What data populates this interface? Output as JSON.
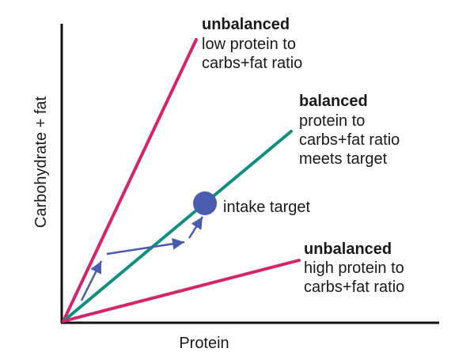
{
  "axes": {
    "y_label": "Carbohydrate + fat",
    "x_label": "Protein"
  },
  "lines": {
    "top": {
      "title": "unbalanced",
      "desc_line1": "low protein to",
      "desc_line2": "carbs+fat ratio",
      "color": "#d4246a"
    },
    "middle": {
      "title": "balanced",
      "desc_line1": "protein to",
      "desc_line2": "carbs+fat ratio",
      "desc_line3": "meets target",
      "color": "#0f8f80"
    },
    "bottom": {
      "title": "unbalanced",
      "desc_line1": "high protein to",
      "desc_line2": "carbs+fat ratio",
      "color": "#d4246a"
    }
  },
  "target": {
    "label": "intake target",
    "color": "#4a5bb0"
  },
  "arrow_color": "#4a5bb0",
  "axis_color": "#111111",
  "text_color": "#1a1a1a"
}
